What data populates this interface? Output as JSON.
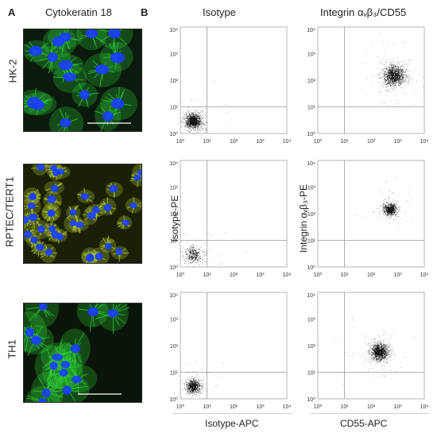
{
  "panels": {
    "a_letter": "A",
    "b_letter": "B"
  },
  "panel_a": {
    "title": "Cytokeratin 18",
    "rows": [
      {
        "label": "HK-2"
      },
      {
        "label": "RPTEC/TERT1"
      },
      {
        "label": "TH1"
      }
    ],
    "colors": {
      "nuclei": "#1a3dff",
      "stain_green": "#2fd03a",
      "stain_yellow": "#b8d230",
      "background": "#0a1208"
    }
  },
  "panel_b": {
    "col_titles": [
      "Isotype",
      "Integrin αᵥβ₃/CD55"
    ],
    "y_label_left": "Isotype-PE",
    "y_label_right": "Integrin αᵥβ₃-PE",
    "x_label_left": "Isotype-APC",
    "x_label_right": "CD55-APC",
    "tick_labels": [
      "10⁰",
      "10¹",
      "10²",
      "10³",
      "10⁴"
    ]
  },
  "chart_data": [
    {
      "type": "scatter",
      "title": "",
      "xlabel": "",
      "ylabel": "",
      "xscale": "log",
      "yscale": "log",
      "xlim": [
        1,
        10000
      ],
      "ylim": [
        1,
        10000
      ],
      "quadrant_gate": [
        10,
        10
      ],
      "cluster": {
        "x": 3,
        "y": 3,
        "spread_log10": 0.18,
        "density": "high"
      },
      "cell_line": "HK-2",
      "stain": "Isotype"
    },
    {
      "type": "scatter",
      "title": "",
      "xlabel": "",
      "ylabel": "",
      "xscale": "log",
      "yscale": "log",
      "xlim": [
        1,
        10000
      ],
      "ylim": [
        1,
        10000
      ],
      "quadrant_gate": [
        10,
        10
      ],
      "cluster": {
        "x": 700,
        "y": 150,
        "spread_log10": 0.25,
        "density": "high"
      },
      "cell_line": "HK-2",
      "stain": "Integrin/CD55"
    },
    {
      "type": "scatter",
      "title": "",
      "xlabel": "",
      "ylabel": "Isotype-PE",
      "xscale": "log",
      "yscale": "log",
      "xlim": [
        1,
        10000
      ],
      "ylim": [
        1,
        10000
      ],
      "quadrant_gate": [
        10,
        10
      ],
      "cluster": {
        "x": 3,
        "y": 3,
        "spread_log10": 0.2,
        "density": "low"
      },
      "cell_line": "RPTEC/TERT1",
      "stain": "Isotype"
    },
    {
      "type": "scatter",
      "title": "",
      "xlabel": "",
      "ylabel": "Integrin αvβ3-PE",
      "xscale": "log",
      "yscale": "log",
      "xlim": [
        1,
        10000
      ],
      "ylim": [
        1,
        10000
      ],
      "quadrant_gate": [
        10,
        10
      ],
      "cluster": {
        "x": 500,
        "y": 150,
        "spread_log10": 0.15,
        "density": "medium"
      },
      "cell_line": "RPTEC/TERT1",
      "stain": "Integrin/CD55"
    },
    {
      "type": "scatter",
      "title": "",
      "xlabel": "Isotype-APC",
      "ylabel": "",
      "xscale": "log",
      "yscale": "log",
      "xlim": [
        1,
        10000
      ],
      "ylim": [
        1,
        10000
      ],
      "quadrant_gate": [
        10,
        10
      ],
      "cluster": {
        "x": 3,
        "y": 3,
        "spread_log10": 0.16,
        "density": "medium"
      },
      "cell_line": "TH1",
      "stain": "Isotype"
    },
    {
      "type": "scatter",
      "title": "",
      "xlabel": "CD55-APC",
      "ylabel": "",
      "xscale": "log",
      "yscale": "log",
      "xlim": [
        1,
        10000
      ],
      "ylim": [
        1,
        10000
      ],
      "quadrant_gate": [
        10,
        10
      ],
      "cluster": {
        "x": 200,
        "y": 60,
        "spread_log10": 0.2,
        "density": "high"
      },
      "cell_line": "TH1",
      "stain": "Integrin/CD55"
    }
  ]
}
